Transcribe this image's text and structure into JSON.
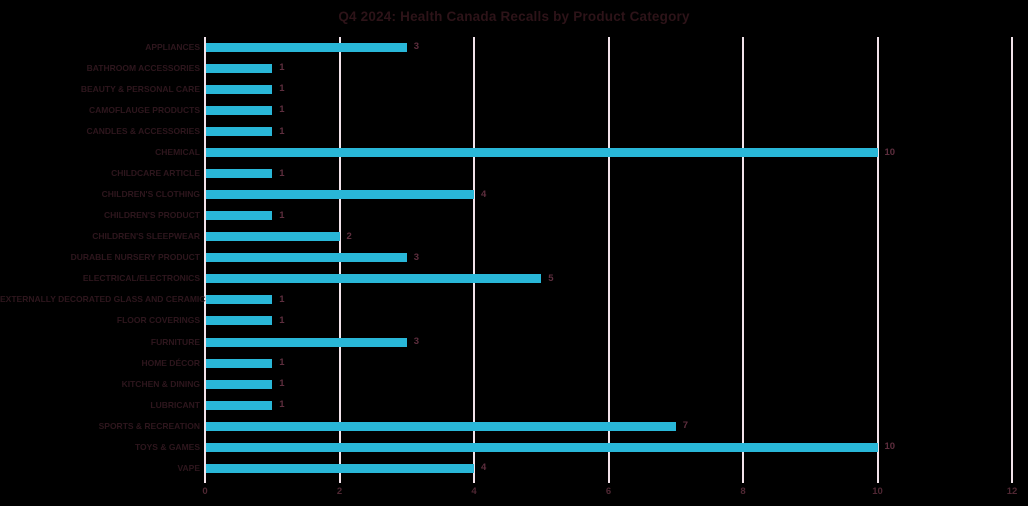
{
  "chart_data": {
    "type": "bar",
    "orientation": "horizontal",
    "title": "Q4 2024: Health Canada Recalls by Product Category",
    "categories": [
      "APPLIANCES",
      "BATHROOM ACCESSORIES",
      "BEAUTY & PERSONAL CARE",
      "CAMOFLAUGE PRODUCTS",
      "CANDLES & ACCESSORIES",
      "CHEMICAL",
      "CHILDCARE ARTICLE",
      "CHILDREN'S CLOTHING",
      "CHILDREN'S PRODUCT",
      "CHILDREN'S SLEEPWEAR",
      "DURABLE NURSERY PRODUCT",
      "ELECTRICAL/ELECTRONICS",
      "EXTERNALLY DECORATED GLASS AND CERAMICS",
      "FLOOR COVERINGS",
      "FURNITURE",
      "HOME DÉCOR",
      "KITCHEN & DINING",
      "LUBRICANT",
      "SPORTS & RECREATION",
      "TOYS & GAMES",
      "VAPE"
    ],
    "values": [
      3,
      1,
      1,
      1,
      1,
      10,
      1,
      4,
      1,
      2,
      3,
      5,
      1,
      1,
      3,
      1,
      1,
      1,
      7,
      10,
      4
    ],
    "data_labels": [
      3,
      1,
      1,
      1,
      1,
      10,
      1,
      4,
      1,
      2,
      3,
      5,
      1,
      1,
      3,
      1,
      1,
      1,
      7,
      10,
      4
    ],
    "xlabel": "",
    "ylabel": "",
    "xlim": [
      0,
      12
    ],
    "x_ticks": [
      0,
      2,
      4,
      6,
      8,
      10,
      12
    ],
    "grid": "vertical-gridlines-on",
    "legend": "none",
    "colors": {
      "background": "#000000",
      "bar": "#29b7d8",
      "gridline": "#f2e3ea",
      "title_text": "#2d1318",
      "category_text": "#2e161d",
      "value_text": "#5e2e3e",
      "tick_text": "#4f2733"
    }
  }
}
